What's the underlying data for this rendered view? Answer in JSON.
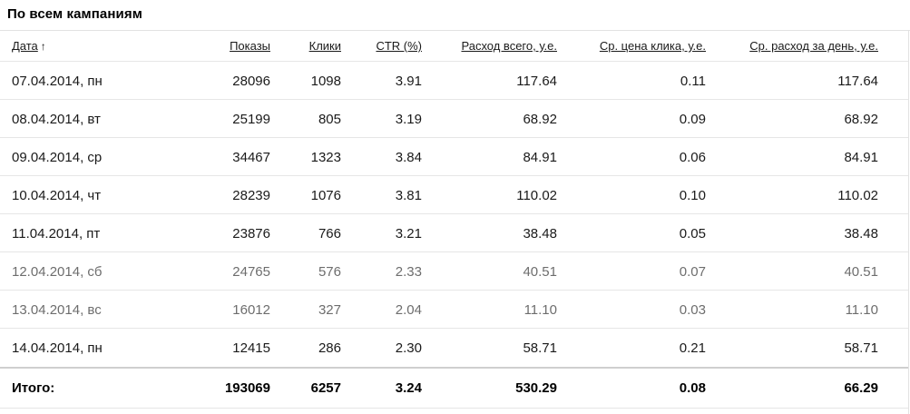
{
  "panel": {
    "title": "По всем кампаниям"
  },
  "columns": {
    "date": "Дата",
    "date_sort_arrow": "↑",
    "shows": "Показы",
    "clicks": "Клики",
    "ctr": "CTR (%)",
    "spent": "Расход всего, у.е.",
    "cpc": "Ср. цена клика, у.е.",
    "daily": "Ср. расход за день, у.е."
  },
  "rows": [
    {
      "date": "07.04.2014, пн",
      "shows": "28096",
      "clicks": "1098",
      "ctr": "3.91",
      "spent": "117.64",
      "cpc": "0.11",
      "daily": "117.64"
    },
    {
      "date": "08.04.2014, вт",
      "shows": "25199",
      "clicks": "805",
      "ctr": "3.19",
      "spent": "68.92",
      "cpc": "0.09",
      "daily": "68.92"
    },
    {
      "date": "09.04.2014, ср",
      "shows": "34467",
      "clicks": "1323",
      "ctr": "3.84",
      "spent": "84.91",
      "cpc": "0.06",
      "daily": "84.91"
    },
    {
      "date": "10.04.2014, чт",
      "shows": "28239",
      "clicks": "1076",
      "ctr": "3.81",
      "spent": "110.02",
      "cpc": "0.10",
      "daily": "110.02"
    },
    {
      "date": "11.04.2014, пт",
      "shows": "23876",
      "clicks": "766",
      "ctr": "3.21",
      "spent": "38.48",
      "cpc": "0.05",
      "daily": "38.48"
    },
    {
      "date": "12.04.2014, сб",
      "shows": "24765",
      "clicks": "576",
      "ctr": "2.33",
      "spent": "40.51",
      "cpc": "0.07",
      "daily": "40.51"
    },
    {
      "date": "13.04.2014, вс",
      "shows": "16012",
      "clicks": "327",
      "ctr": "2.04",
      "spent": "11.10",
      "cpc": "0.03",
      "daily": "11.10"
    },
    {
      "date": "14.04.2014, пн",
      "shows": "12415",
      "clicks": "286",
      "ctr": "2.30",
      "spent": "58.71",
      "cpc": "0.21",
      "daily": "58.71"
    }
  ],
  "totals": {
    "label": "Итого:",
    "shows": "193069",
    "clicks": "6257",
    "ctr": "3.24",
    "spent": "530.29",
    "cpc": "0.08",
    "daily": "66.29"
  },
  "colors": {
    "weekend_text": "#6d6d6d",
    "text": "#1a1a1a",
    "rule": "#e6e6e6"
  }
}
